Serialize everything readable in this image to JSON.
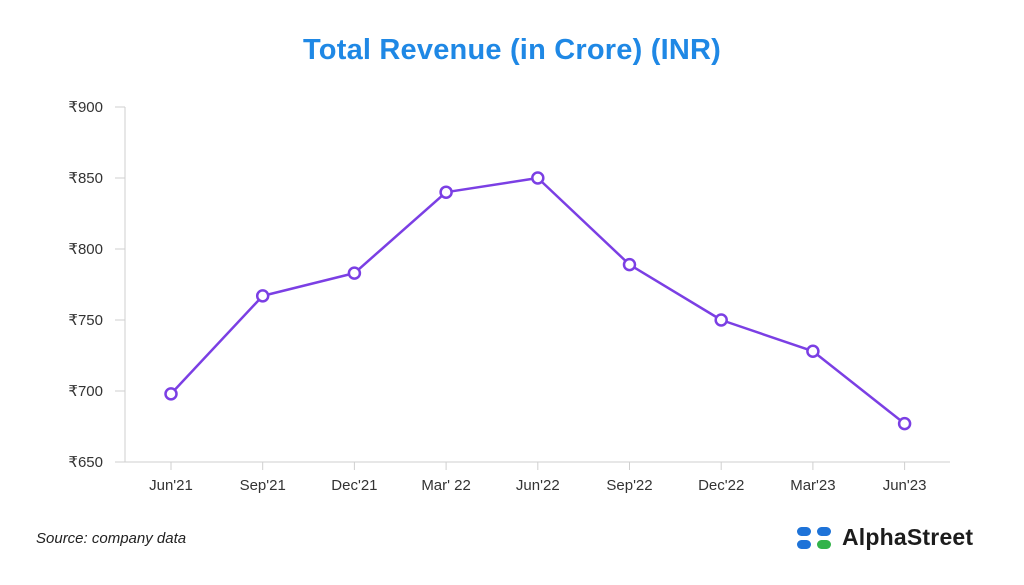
{
  "chart_data": {
    "type": "line",
    "title": "Total Revenue (in Crore) (INR)",
    "xlabel": "",
    "ylabel": "",
    "categories": [
      "Jun'21",
      "Sep'21",
      "Dec'21",
      "Mar' 22",
      "Jun'22",
      "Sep'22",
      "Dec'22",
      "Mar'23",
      "Jun'23"
    ],
    "series": [
      {
        "name": "Total Revenue",
        "values": [
          698,
          767,
          783,
          840,
          850,
          789,
          750,
          728,
          677
        ]
      }
    ],
    "ylim": [
      650,
      900
    ],
    "yticks": [
      900,
      850,
      800,
      750,
      700,
      650
    ],
    "ytick_prefix": "₹",
    "grid": false,
    "legend": "none",
    "line_color": "#7b3fe4",
    "axis_color": "#cfcfcf"
  },
  "footer": {
    "source": "Source: company data",
    "brand": "AlphaStreet"
  },
  "colors": {
    "title": "#1f88e5",
    "logo_blue": "#1e73d8",
    "logo_green": "#32b34a"
  }
}
